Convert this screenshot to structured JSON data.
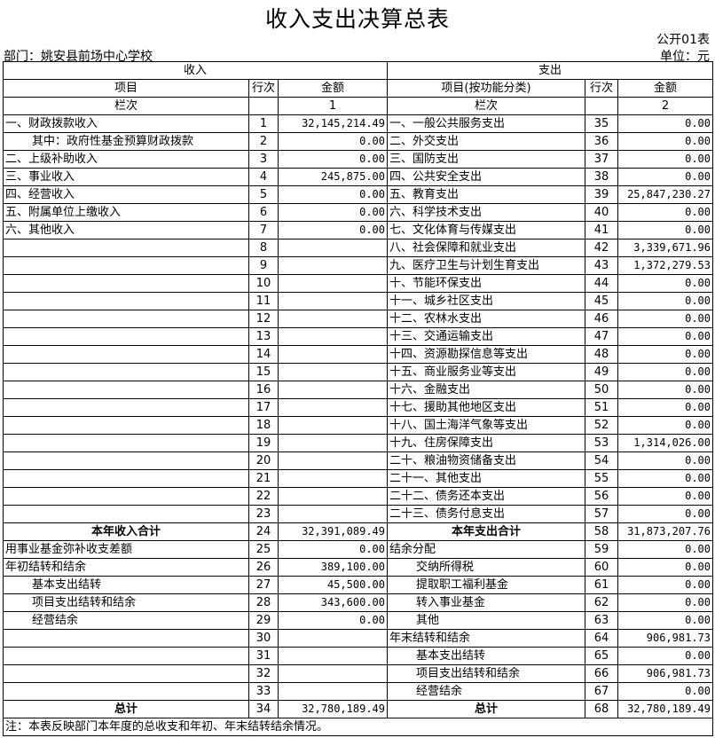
{
  "title": "收入支出决算总表",
  "form_code": "公开01表",
  "department": "部门：姚安县前场中心学校",
  "unit": "单位：元",
  "headers": {
    "income": "收入",
    "expense": "支出",
    "item": "项目",
    "line": "行次",
    "amount": "金额",
    "item_func": "项目(按功能分类)",
    "column": "栏次",
    "col1": "1",
    "col2": "2"
  },
  "rows": [
    {
      "l": [
        "一、财政拨款收入",
        "1",
        "32,145,214.49"
      ],
      "r": [
        "一、一般公共服务支出",
        "35",
        "0.00"
      ]
    },
    {
      "l": [
        "其中：政府性基金预算财政拨款",
        "2",
        "0.00"
      ],
      "li": 1,
      "r": [
        "二、外交支出",
        "36",
        "0.00"
      ]
    },
    {
      "l": [
        "二、上级补助收入",
        "3",
        "0.00"
      ],
      "r": [
        "三、国防支出",
        "37",
        "0.00"
      ]
    },
    {
      "l": [
        "三、事业收入",
        "4",
        "245,875.00"
      ],
      "r": [
        "四、公共安全支出",
        "38",
        "0.00"
      ]
    },
    {
      "l": [
        "四、经营收入",
        "5",
        "0.00"
      ],
      "r": [
        "五、教育支出",
        "39",
        "25,847,230.27"
      ]
    },
    {
      "l": [
        "五、附属单位上缴收入",
        "6",
        "0.00"
      ],
      "r": [
        "六、科学技术支出",
        "40",
        "0.00"
      ]
    },
    {
      "l": [
        "六、其他收入",
        "7",
        "0.00"
      ],
      "r": [
        "七、文化体育与传媒支出",
        "41",
        "0.00"
      ]
    },
    {
      "l": [
        "",
        "8",
        ""
      ],
      "r": [
        "八、社会保障和就业支出",
        "42",
        "3,339,671.96"
      ]
    },
    {
      "l": [
        "",
        "9",
        ""
      ],
      "r": [
        "九、医疗卫生与计划生育支出",
        "43",
        "1,372,279.53"
      ]
    },
    {
      "l": [
        "",
        "10",
        ""
      ],
      "r": [
        "十、节能环保支出",
        "44",
        "0.00"
      ]
    },
    {
      "l": [
        "",
        "11",
        ""
      ],
      "r": [
        "十一、城乡社区支出",
        "45",
        "0.00"
      ]
    },
    {
      "l": [
        "",
        "12",
        ""
      ],
      "r": [
        "十二、农林水支出",
        "46",
        "0.00"
      ]
    },
    {
      "l": [
        "",
        "13",
        ""
      ],
      "r": [
        "十三、交通运输支出",
        "47",
        "0.00"
      ]
    },
    {
      "l": [
        "",
        "14",
        ""
      ],
      "r": [
        "十四、资源勘探信息等支出",
        "48",
        "0.00"
      ]
    },
    {
      "l": [
        "",
        "15",
        ""
      ],
      "r": [
        "十五、商业服务业等支出",
        "49",
        "0.00"
      ]
    },
    {
      "l": [
        "",
        "16",
        ""
      ],
      "r": [
        "十六、金融支出",
        "50",
        "0.00"
      ]
    },
    {
      "l": [
        "",
        "17",
        ""
      ],
      "r": [
        "十七、援助其他地区支出",
        "51",
        "0.00"
      ]
    },
    {
      "l": [
        "",
        "18",
        ""
      ],
      "r": [
        "十八、国土海洋气象等支出",
        "52",
        "0.00"
      ]
    },
    {
      "l": [
        "",
        "19",
        ""
      ],
      "r": [
        "十九、住房保障支出",
        "53",
        "1,314,026.00"
      ]
    },
    {
      "l": [
        "",
        "20",
        ""
      ],
      "r": [
        "二十、粮油物资储备支出",
        "54",
        "0.00"
      ]
    },
    {
      "l": [
        "",
        "21",
        ""
      ],
      "r": [
        "二十一、其他支出",
        "55",
        "0.00"
      ]
    },
    {
      "l": [
        "",
        "22",
        ""
      ],
      "r": [
        "二十二、债务还本支出",
        "56",
        "0.00"
      ]
    },
    {
      "l": [
        "",
        "23",
        ""
      ],
      "r": [
        "二十三、债务付息支出",
        "57",
        "0.00"
      ]
    },
    {
      "l": [
        "本年收入合计",
        "24",
        "32,391,089.49"
      ],
      "lb": true,
      "r": [
        "本年支出合计",
        "58",
        "31,873,207.76"
      ],
      "rb": true
    },
    {
      "l": [
        "用事业基金弥补收支差额",
        "25",
        "0.00"
      ],
      "r": [
        "结余分配",
        "59",
        "0.00"
      ]
    },
    {
      "l": [
        "年初结转和结余",
        "26",
        "389,100.00"
      ],
      "r": [
        "交纳所得税",
        "60",
        "0.00"
      ],
      "ri": 1
    },
    {
      "l": [
        "基本支出结转",
        "27",
        "45,500.00"
      ],
      "li": 1,
      "r": [
        "提取职工福利基金",
        "61",
        "0.00"
      ],
      "ri": 1
    },
    {
      "l": [
        "项目支出结转和结余",
        "28",
        "343,600.00"
      ],
      "li": 1,
      "r": [
        "转入事业基金",
        "62",
        "0.00"
      ],
      "ri": 1
    },
    {
      "l": [
        "经营结余",
        "29",
        "0.00"
      ],
      "li": 1,
      "r": [
        "其他",
        "63",
        "0.00"
      ],
      "ri": 1
    },
    {
      "l": [
        "",
        "30",
        ""
      ],
      "r": [
        "年末结转和结余",
        "64",
        "906,981.73"
      ]
    },
    {
      "l": [
        "",
        "31",
        ""
      ],
      "r": [
        "基本支出结转",
        "65",
        "0.00"
      ],
      "ri": 1
    },
    {
      "l": [
        "",
        "32",
        ""
      ],
      "r": [
        "项目支出结转和结余",
        "66",
        "906,981.73"
      ],
      "ri": 1
    },
    {
      "l": [
        "",
        "33",
        ""
      ],
      "r": [
        "经营结余",
        "67",
        "0.00"
      ],
      "ri": 1
    },
    {
      "l": [
        "总计",
        "34",
        "32,780,189.49"
      ],
      "lb": true,
      "r": [
        "总计",
        "68",
        "32,780,189.49"
      ],
      "rb": true
    }
  ],
  "note": "注：本表反映部门本年度的总收支和年初、年末结转结余情况。"
}
